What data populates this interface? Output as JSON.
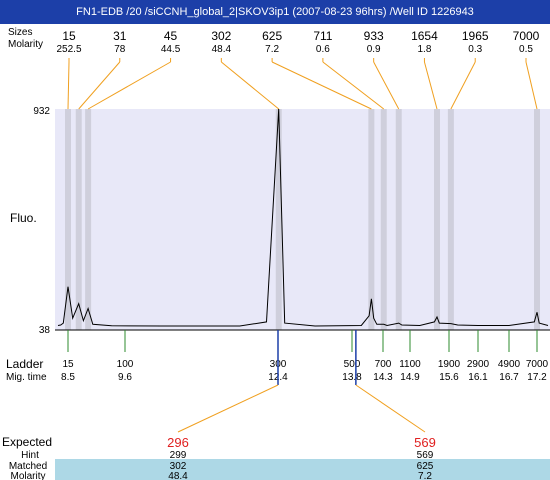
{
  "window": {
    "title": "FN1-EDB /20 /siCCNH_global_2|SKOV3ip1 (2007-08-23 96hrs) /Well ID 1226943"
  },
  "colors": {
    "titlebar": "#1c3fa8",
    "plot_background": "#e8e8f8",
    "peak_band": "#cfcfdc",
    "connector_line": "#f0a020",
    "ladder_tick": "#2e8b2e",
    "expected_value": "#e02020",
    "matched_band": "#add8e6"
  },
  "labels": {
    "fluo": "Fluo.",
    "ladder": "Ladder",
    "mig_time": "Mig. time",
    "expected": "Expected",
    "hint": "Hint",
    "matched": "Matched",
    "molarity": "Molarity",
    "top_size": "Sizes",
    "top_molarity": "Molarity"
  },
  "chart_data": {
    "type": "line",
    "title": "",
    "ylabel": "Fluo.",
    "ylim": [
      38,
      932
    ],
    "x_scale": "size (bp) ladder-calibrated",
    "peaks": [
      {
        "size": "15",
        "molarity": "252.5",
        "x": 15
      },
      {
        "size": "31",
        "molarity": "78",
        "x": 31
      },
      {
        "size": "45",
        "molarity": "44.5",
        "x": 45
      },
      {
        "size": "302",
        "molarity": "48.4",
        "x": 302
      },
      {
        "size": "625",
        "molarity": "7.2",
        "x": 625
      },
      {
        "size": "711",
        "molarity": "0.6",
        "x": 711
      },
      {
        "size": "933",
        "molarity": "0.9",
        "x": 933
      },
      {
        "size": "1654",
        "molarity": "1.8",
        "x": 1654
      },
      {
        "size": "1965",
        "molarity": "0.3",
        "x": 1965
      },
      {
        "size": "7000",
        "molarity": "0.5",
        "x": 7000
      }
    ],
    "ladder": [
      {
        "size": "15",
        "mig_time": "8.5"
      },
      {
        "size": "100",
        "mig_time": "9.6"
      },
      {
        "size": "300",
        "mig_time": "12.4"
      },
      {
        "size": "500",
        "mig_time": "13.8"
      },
      {
        "size": "700",
        "mig_time": "14.3"
      },
      {
        "size": "1100",
        "mig_time": "14.9"
      },
      {
        "size": "1900",
        "mig_time": "15.6"
      },
      {
        "size": "2900",
        "mig_time": "16.1"
      },
      {
        "size": "4900",
        "mig_time": "16.7"
      },
      {
        "size": "7000",
        "mig_time": "17.2"
      }
    ],
    "expected": [
      {
        "expected": "296",
        "hint": "299",
        "matched": "302",
        "molarity": "48.4"
      },
      {
        "expected": "569",
        "hint": "569",
        "matched": "625",
        "molarity": "7.2"
      }
    ],
    "trace": [
      [
        0,
        40
      ],
      [
        4,
        42
      ],
      [
        8,
        50
      ],
      [
        15,
        200
      ],
      [
        22,
        70
      ],
      [
        31,
        130
      ],
      [
        38,
        60
      ],
      [
        45,
        110
      ],
      [
        52,
        45
      ],
      [
        80,
        39
      ],
      [
        150,
        38
      ],
      [
        250,
        38
      ],
      [
        285,
        55
      ],
      [
        302,
        932
      ],
      [
        318,
        50
      ],
      [
        400,
        38
      ],
      [
        560,
        40
      ],
      [
        610,
        80
      ],
      [
        625,
        150
      ],
      [
        640,
        70
      ],
      [
        660,
        45
      ],
      [
        711,
        45
      ],
      [
        760,
        40
      ],
      [
        933,
        50
      ],
      [
        980,
        42
      ],
      [
        1300,
        40
      ],
      [
        1600,
        55
      ],
      [
        1654,
        75
      ],
      [
        1700,
        50
      ],
      [
        1965,
        48
      ],
      [
        2200,
        42
      ],
      [
        2900,
        40
      ],
      [
        4900,
        40
      ],
      [
        6800,
        55
      ],
      [
        7000,
        95
      ],
      [
        7200,
        50
      ],
      [
        8000,
        40
      ]
    ]
  }
}
